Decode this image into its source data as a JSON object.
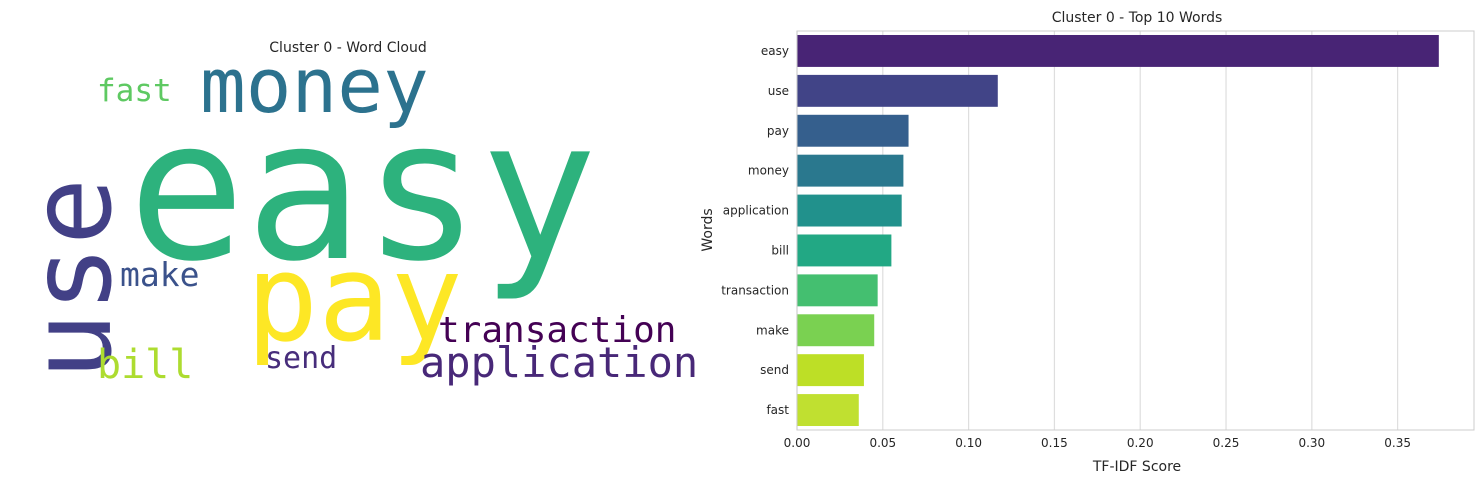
{
  "wordcloud": {
    "title": "Cluster 0 - Word Cloud",
    "words": [
      {
        "text": "easy",
        "color": "#2db27d"
      },
      {
        "text": "use",
        "color": "#424086"
      },
      {
        "text": "money",
        "color": "#2c728e"
      },
      {
        "text": "fast",
        "color": "#5ec962"
      },
      {
        "text": "pay",
        "color": "#fde725"
      },
      {
        "text": "make",
        "color": "#3b528b"
      },
      {
        "text": "bill",
        "color": "#addc30"
      },
      {
        "text": "send",
        "color": "#472d7b"
      },
      {
        "text": "transaction",
        "color": "#440154"
      },
      {
        "text": "application",
        "color": "#482878"
      }
    ]
  },
  "chart_data": {
    "type": "bar",
    "orientation": "horizontal",
    "title": "Cluster 0 - Top 10 Words",
    "xlabel": "TF-IDF Score",
    "ylabel": "Words",
    "categories": [
      "easy",
      "use",
      "pay",
      "money",
      "application",
      "bill",
      "transaction",
      "make",
      "send",
      "fast"
    ],
    "values": [
      0.374,
      0.117,
      0.065,
      0.062,
      0.061,
      0.055,
      0.047,
      0.045,
      0.039,
      0.036
    ],
    "colors": [
      "#482475",
      "#414487",
      "#355f8d",
      "#2a788e",
      "#21918c",
      "#22a884",
      "#44bf70",
      "#7ad151",
      "#bddf26",
      "#c0e030"
    ],
    "xlim": [
      0,
      0.3945
    ],
    "xticks": [
      0.0,
      0.05,
      0.1,
      0.15,
      0.2,
      0.25,
      0.3,
      0.35
    ],
    "xtick_labels": [
      "0.00",
      "0.05",
      "0.10",
      "0.15",
      "0.20",
      "0.25",
      "0.30",
      "0.35"
    ],
    "grid": "x"
  }
}
